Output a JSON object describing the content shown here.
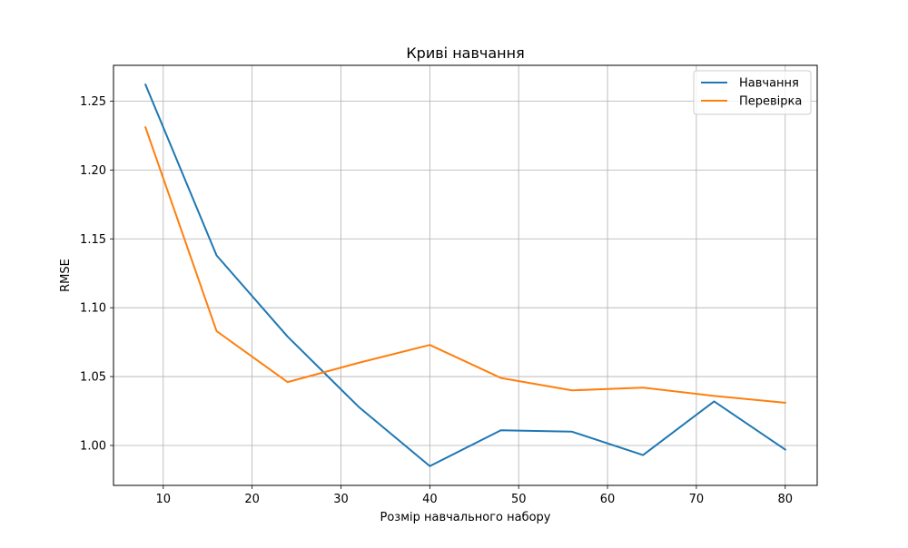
{
  "chart_data": {
    "type": "line",
    "title": "Криві навчання",
    "xlabel": "Розмір навчального набору",
    "ylabel": "RMSE",
    "x": [
      8,
      16,
      24,
      32,
      40,
      48,
      56,
      64,
      72,
      80
    ],
    "xlim": [
      4.4,
      83.6
    ],
    "ylim": [
      0.971,
      1.276
    ],
    "xticks": [
      10,
      20,
      30,
      40,
      50,
      60,
      70,
      80
    ],
    "xtick_labels": [
      "10",
      "20",
      "30",
      "40",
      "50",
      "60",
      "70",
      "80"
    ],
    "yticks": [
      1.0,
      1.05,
      1.1,
      1.15,
      1.2,
      1.25
    ],
    "ytick_labels": [
      "1.00",
      "1.05",
      "1.10",
      "1.15",
      "1.20",
      "1.25"
    ],
    "grid": true,
    "legend_position": "top-right",
    "series": [
      {
        "name": "Навчання",
        "color": "#1f77b4",
        "values": [
          1.262,
          1.138,
          1.079,
          1.028,
          0.985,
          1.011,
          1.01,
          0.993,
          1.032,
          0.997
        ]
      },
      {
        "name": "Перевірка",
        "color": "#ff7f0e",
        "values": [
          1.231,
          1.083,
          1.046,
          1.06,
          1.073,
          1.049,
          1.04,
          1.042,
          1.036,
          1.031
        ]
      }
    ]
  }
}
